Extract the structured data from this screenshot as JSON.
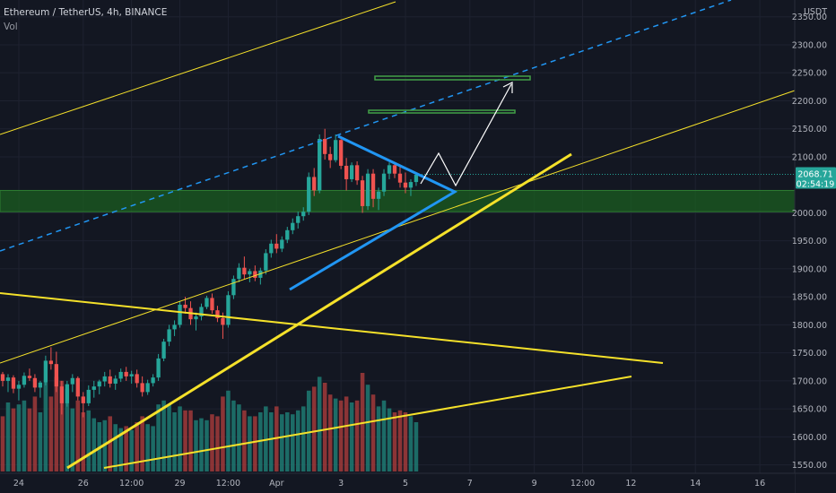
{
  "header": {
    "symbol_line": "Ethereum / TetherUS, 4h, BINANCE",
    "volume_label": "Vol"
  },
  "price_axis": {
    "currency": "USDT",
    "ticks": [
      {
        "value": 2350,
        "label": "2350.00"
      },
      {
        "value": 2300,
        "label": "2300.00"
      },
      {
        "value": 2250,
        "label": "2250.00"
      },
      {
        "value": 2200,
        "label": "2200.00"
      },
      {
        "value": 2150,
        "label": "2150.00"
      },
      {
        "value": 2100,
        "label": "2100.00"
      },
      {
        "value": 2000,
        "label": "2000.00"
      },
      {
        "value": 1950,
        "label": "1950.00"
      },
      {
        "value": 1900,
        "label": "1900.00"
      },
      {
        "value": 1850,
        "label": "1850.00"
      },
      {
        "value": 1800,
        "label": "1800.00"
      },
      {
        "value": 1750,
        "label": "1750.00"
      },
      {
        "value": 1700,
        "label": "1700.00"
      },
      {
        "value": 1650,
        "label": "1650.00"
      },
      {
        "value": 1600,
        "label": "1600.00"
      },
      {
        "value": 1550,
        "label": "1550.00"
      }
    ],
    "current_price": {
      "value": 2068.71,
      "label": "2068.71",
      "countdown": "02:54:19"
    }
  },
  "time_axis": {
    "ticks": [
      {
        "label": "24",
        "slot": 0
      },
      {
        "label": "26",
        "slot": 12
      },
      {
        "label": "12:00",
        "slot": 21
      },
      {
        "label": "29",
        "slot": 30
      },
      {
        "label": "12:00",
        "slot": 39
      },
      {
        "label": "Apr",
        "slot": 48
      },
      {
        "label": "3",
        "slot": 60
      },
      {
        "label": "5",
        "slot": 72
      },
      {
        "label": "7",
        "slot": 84
      },
      {
        "label": "9",
        "slot": 96
      },
      {
        "label": "12:00",
        "slot": 105
      },
      {
        "label": "12",
        "slot": 114
      },
      {
        "label": "14",
        "slot": 126
      },
      {
        "label": "16",
        "slot": 138
      }
    ]
  },
  "chart_data": {
    "type": "candlestick",
    "symbol": "ETH/USDT",
    "timeframe": "4h",
    "ylim": [
      1535,
      2380
    ],
    "slot_range": [
      -3.5,
      144.5
    ],
    "candles": [
      [
        -3,
        1712,
        1716,
        1690,
        1700,
        560
      ],
      [
        -2,
        1700,
        1712,
        1680,
        1706,
        700
      ],
      [
        -1,
        1706,
        1710,
        1678,
        1686,
        640
      ],
      [
        0,
        1686,
        1700,
        1665,
        1693,
        680
      ],
      [
        1,
        1693,
        1715,
        1688,
        1709,
        720
      ],
      [
        2,
        1709,
        1722,
        1700,
        1705,
        640
      ],
      [
        3,
        1705,
        1712,
        1680,
        1688,
        760
      ],
      [
        4,
        1688,
        1700,
        1670,
        1697,
        600
      ],
      [
        5,
        1697,
        1745,
        1692,
        1736,
        900
      ],
      [
        6,
        1736,
        1760,
        1720,
        1730,
        760
      ],
      [
        7,
        1730,
        1752,
        1680,
        1690,
        960
      ],
      [
        8,
        1690,
        1700,
        1640,
        1660,
        920
      ],
      [
        9,
        1660,
        1700,
        1654,
        1694,
        840
      ],
      [
        10,
        1694,
        1712,
        1680,
        1705,
        640
      ],
      [
        11,
        1705,
        1708,
        1665,
        1672,
        720
      ],
      [
        12,
        1672,
        1680,
        1635,
        1660,
        600
      ],
      [
        13,
        1660,
        1692,
        1655,
        1684,
        620
      ],
      [
        14,
        1684,
        1700,
        1670,
        1690,
        540
      ],
      [
        15,
        1690,
        1702,
        1676,
        1699,
        500
      ],
      [
        16,
        1699,
        1716,
        1690,
        1708,
        520
      ],
      [
        17,
        1708,
        1720,
        1688,
        1695,
        560
      ],
      [
        18,
        1695,
        1710,
        1684,
        1704,
        480
      ],
      [
        19,
        1704,
        1722,
        1698,
        1716,
        440
      ],
      [
        20,
        1716,
        1725,
        1700,
        1708,
        460
      ],
      [
        21,
        1708,
        1718,
        1695,
        1712,
        420
      ],
      [
        22,
        1712,
        1720,
        1688,
        1696,
        500
      ],
      [
        23,
        1696,
        1708,
        1672,
        1680,
        560
      ],
      [
        24,
        1680,
        1702,
        1675,
        1696,
        480
      ],
      [
        25,
        1696,
        1712,
        1690,
        1706,
        460
      ],
      [
        26,
        1706,
        1748,
        1700,
        1740,
        680
      ],
      [
        27,
        1740,
        1775,
        1735,
        1770,
        720
      ],
      [
        28,
        1770,
        1800,
        1762,
        1792,
        680
      ],
      [
        29,
        1792,
        1808,
        1780,
        1800,
        600
      ],
      [
        30,
        1800,
        1842,
        1795,
        1836,
        660
      ],
      [
        31,
        1836,
        1850,
        1820,
        1830,
        620
      ],
      [
        32,
        1830,
        1842,
        1800,
        1810,
        620
      ],
      [
        33,
        1810,
        1822,
        1790,
        1815,
        520
      ],
      [
        34,
        1815,
        1838,
        1808,
        1832,
        540
      ],
      [
        35,
        1832,
        1852,
        1828,
        1848,
        520
      ],
      [
        36,
        1848,
        1856,
        1820,
        1826,
        580
      ],
      [
        37,
        1826,
        1834,
        1805,
        1812,
        560
      ],
      [
        38,
        1812,
        1822,
        1775,
        1800,
        760
      ],
      [
        39,
        1800,
        1860,
        1795,
        1853,
        820
      ],
      [
        40,
        1853,
        1888,
        1846,
        1882,
        720
      ],
      [
        41,
        1882,
        1910,
        1876,
        1902,
        680
      ],
      [
        42,
        1902,
        1922,
        1882,
        1890,
        620
      ],
      [
        43,
        1890,
        1900,
        1876,
        1896,
        560
      ],
      [
        44,
        1896,
        1906,
        1878,
        1884,
        560
      ],
      [
        45,
        1884,
        1902,
        1872,
        1897,
        600
      ],
      [
        46,
        1897,
        1935,
        1890,
        1928,
        660
      ],
      [
        47,
        1928,
        1952,
        1920,
        1945,
        600
      ],
      [
        48,
        1945,
        1962,
        1928,
        1936,
        660
      ],
      [
        49,
        1936,
        1958,
        1930,
        1952,
        580
      ],
      [
        50,
        1952,
        1975,
        1946,
        1969,
        600
      ],
      [
        51,
        1969,
        1990,
        1962,
        1982,
        580
      ],
      [
        52,
        1982,
        2002,
        1972,
        1994,
        620
      ],
      [
        53,
        1994,
        2010,
        1986,
        2002,
        660
      ],
      [
        54,
        2002,
        2072,
        1996,
        2064,
        820
      ],
      [
        55,
        2064,
        2080,
        2030,
        2040,
        860
      ],
      [
        56,
        2040,
        2140,
        2035,
        2132,
        960
      ],
      [
        57,
        2132,
        2150,
        2095,
        2105,
        900
      ],
      [
        58,
        2105,
        2118,
        2080,
        2094,
        780
      ],
      [
        59,
        2094,
        2140,
        2090,
        2130,
        740
      ],
      [
        60,
        2130,
        2136,
        2078,
        2084,
        720
      ],
      [
        61,
        2084,
        2098,
        2040,
        2060,
        760
      ],
      [
        62,
        2060,
        2090,
        2055,
        2085,
        700
      ],
      [
        63,
        2085,
        2092,
        2050,
        2058,
        720
      ],
      [
        64,
        2058,
        2066,
        2000,
        2012,
        1000
      ],
      [
        65,
        2012,
        2078,
        2005,
        2070,
        880
      ],
      [
        66,
        2070,
        2078,
        2010,
        2025,
        780
      ],
      [
        67,
        2025,
        2045,
        2005,
        2038,
        660
      ],
      [
        68,
        2038,
        2078,
        2030,
        2070,
        720
      ],
      [
        69,
        2070,
        2090,
        2060,
        2085,
        640
      ],
      [
        70,
        2085,
        2090,
        2062,
        2070,
        600
      ],
      [
        71,
        2070,
        2082,
        2045,
        2054,
        620
      ],
      [
        72,
        2054,
        2072,
        2035,
        2045,
        600
      ],
      [
        73,
        2045,
        2060,
        2030,
        2055,
        560
      ],
      [
        74,
        2055,
        2072,
        2048,
        2068,
        500
      ]
    ]
  },
  "colors": {
    "background": "#131722",
    "up_candle": "#26a69a",
    "down_candle": "#ef5350",
    "up_volume": "#1f7a72",
    "down_volume": "#a13a3a",
    "trendline_yellow": "#f5e12a",
    "channel_blue": "#2196f3",
    "zone_green": "#1b5e20",
    "target_green": "#2e7d32",
    "arrow_white": "#ffffff",
    "axis_text": "#b2b5be"
  }
}
